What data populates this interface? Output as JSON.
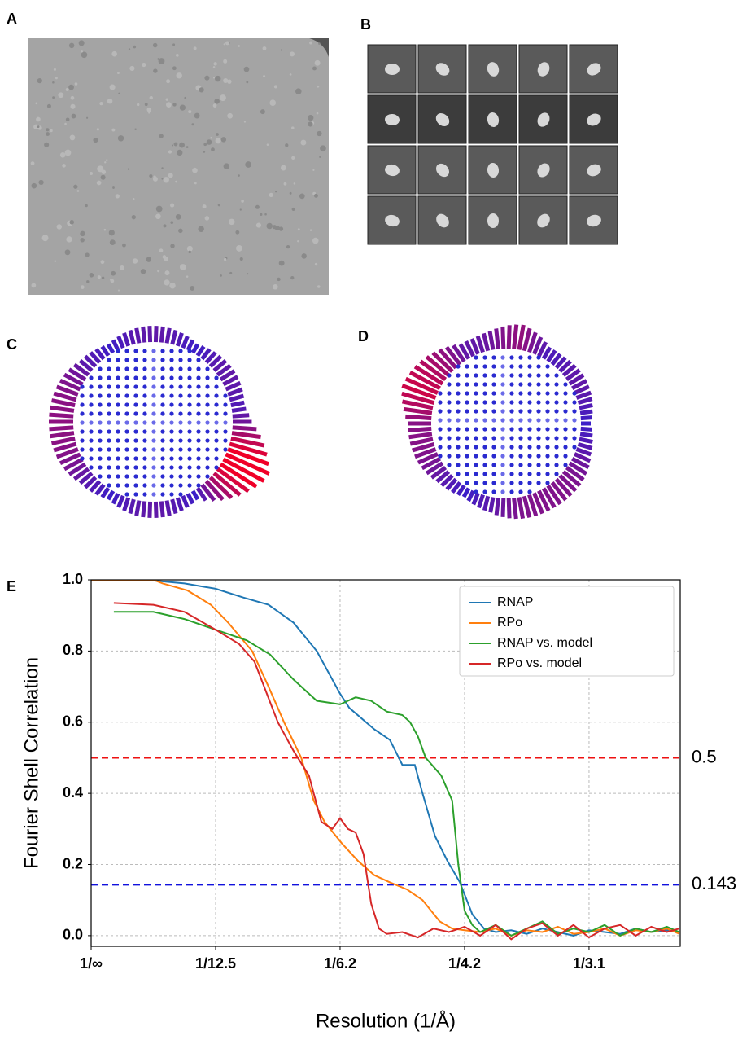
{
  "panel_labels": [
    "A",
    "B",
    "C",
    "D"
  ],
  "chart_data": {
    "type": "line",
    "panel_label": "E",
    "xlabel": "Resolution (1/Å)",
    "ylabel": "Fourier Shell Correlation",
    "xlim": [
      0,
      0.3786
    ],
    "ylim": [
      -0.03,
      1.0
    ],
    "xticks": [
      {
        "value": 0,
        "label": "1/∞"
      },
      {
        "value": 0.08,
        "label": "1/12.5"
      },
      {
        "value": 0.16,
        "label": "1/6.2"
      },
      {
        "value": 0.24,
        "label": "1/4.2"
      },
      {
        "value": 0.32,
        "label": "1/3.1"
      }
    ],
    "yticks": [
      {
        "value": 0,
        "label": "0.0"
      },
      0.2,
      0.4,
      0.6,
      0.8,
      {
        "value": 1,
        "label": "1.0"
      }
    ],
    "grid": true,
    "legend": "upper right",
    "reference_lines": [
      {
        "value": 0.5,
        "color": "#ee1111"
      },
      {
        "value": 0.143,
        "color": "#1111dd"
      }
    ],
    "series": [
      {
        "name": "RNAP",
        "color": "#1f77b4",
        "x": [
          0,
          0.02,
          0.04,
          0.06,
          0.08,
          0.098,
          0.114,
          0.13,
          0.145,
          0.16,
          0.166,
          0.182,
          0.192,
          0.2,
          0.208,
          0.213,
          0.221,
          0.229,
          0.237,
          0.245,
          0.2525,
          0.26,
          0.27,
          0.28,
          0.29,
          0.3,
          0.31,
          0.32,
          0.33,
          0.34,
          0.35,
          0.36,
          0.37,
          0.378
        ],
        "values": [
          1.0,
          1.0,
          0.998,
          0.99,
          0.975,
          0.95,
          0.93,
          0.88,
          0.8,
          0.68,
          0.64,
          0.58,
          0.55,
          0.48,
          0.48,
          0.4,
          0.28,
          0.21,
          0.15,
          0.06,
          0.02,
          0.01,
          0.015,
          0.005,
          0.02,
          0.01,
          0.0,
          0.015,
          0.01,
          0.005,
          0.02,
          0.01,
          0.015,
          0.01
        ]
      },
      {
        "name": "RPo",
        "color": "#ff7f0e",
        "x": [
          0,
          0.02,
          0.04,
          0.046,
          0.062,
          0.077,
          0.088,
          0.1035,
          0.114,
          0.124,
          0.135,
          0.143,
          0.15,
          0.161,
          0.1715,
          0.182,
          0.192,
          0.203,
          0.213,
          0.224,
          0.232,
          0.24,
          0.25,
          0.26,
          0.27,
          0.28,
          0.29,
          0.3,
          0.31,
          0.32,
          0.33,
          0.34,
          0.35,
          0.36,
          0.37,
          0.378
        ],
        "values": [
          1.0,
          1.0,
          1.0,
          0.99,
          0.97,
          0.93,
          0.88,
          0.8,
          0.7,
          0.6,
          0.5,
          0.38,
          0.32,
          0.26,
          0.21,
          0.17,
          0.15,
          0.13,
          0.1,
          0.04,
          0.02,
          0.015,
          0.01,
          0.02,
          0.0,
          0.015,
          0.01,
          0.025,
          0.005,
          0.01,
          0.02,
          0.0,
          0.015,
          0.01,
          0.02,
          0.005
        ]
      },
      {
        "name": "RNAP vs. model",
        "color": "#2ca02c",
        "x": [
          0.0146,
          0.04,
          0.06,
          0.08,
          0.1,
          0.115,
          0.13,
          0.145,
          0.16,
          0.17,
          0.18,
          0.19,
          0.2,
          0.205,
          0.21,
          0.215,
          0.225,
          0.232,
          0.236,
          0.24,
          0.245,
          0.25,
          0.26,
          0.27,
          0.28,
          0.29,
          0.3,
          0.31,
          0.32,
          0.33,
          0.34,
          0.35,
          0.36,
          0.37,
          0.378
        ],
        "values": [
          0.91,
          0.91,
          0.89,
          0.86,
          0.83,
          0.79,
          0.72,
          0.66,
          0.65,
          0.67,
          0.66,
          0.63,
          0.62,
          0.6,
          0.56,
          0.5,
          0.45,
          0.38,
          0.2,
          0.07,
          0.03,
          0.01,
          0.03,
          0.0,
          0.02,
          0.04,
          0.005,
          0.02,
          0.01,
          0.03,
          0.0,
          0.02,
          0.01,
          0.025,
          0.01
        ]
      },
      {
        "name": "RPo vs. model",
        "color": "#d62728",
        "x": [
          0.0146,
          0.04,
          0.06,
          0.08,
          0.095,
          0.105,
          0.12,
          0.13,
          0.14,
          0.148,
          0.155,
          0.16,
          0.165,
          0.17,
          0.175,
          0.18,
          0.185,
          0.19,
          0.2,
          0.21,
          0.22,
          0.23,
          0.24,
          0.25,
          0.26,
          0.27,
          0.28,
          0.29,
          0.3,
          0.31,
          0.32,
          0.33,
          0.34,
          0.35,
          0.36,
          0.37,
          0.378
        ],
        "values": [
          0.935,
          0.93,
          0.91,
          0.86,
          0.82,
          0.77,
          0.6,
          0.52,
          0.45,
          0.32,
          0.3,
          0.33,
          0.3,
          0.29,
          0.23,
          0.09,
          0.02,
          0.005,
          0.01,
          -0.005,
          0.02,
          0.01,
          0.025,
          0.0,
          0.03,
          -0.01,
          0.02,
          0.035,
          0.0,
          0.03,
          -0.005,
          0.02,
          0.03,
          0.0,
          0.025,
          0.01,
          0.02
        ]
      }
    ]
  }
}
